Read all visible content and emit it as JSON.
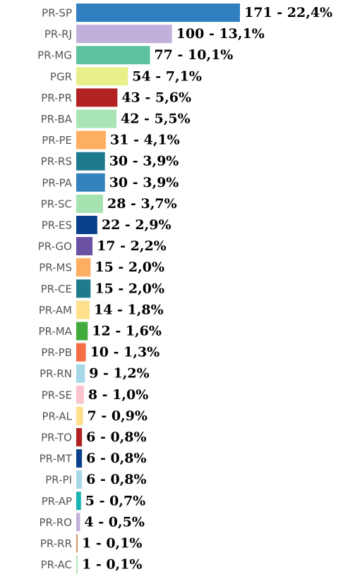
{
  "chart_data": {
    "type": "bar",
    "categories": [
      "PR-SP",
      "PR-RJ",
      "PR-MG",
      "PGR",
      "PR-PR",
      "PR-BA",
      "PR-PE",
      "PR-RS",
      "PR-PA",
      "PR-SC",
      "PR-ES",
      "PR-GO",
      "PR-MS",
      "PR-CE",
      "PR-AM",
      "PR-MA",
      "PR-PB",
      "PR-RN",
      "PR-SE",
      "PR-AL",
      "PR-TO",
      "PR-MT",
      "PR-PI",
      "PR-AP",
      "PR-RO",
      "PR-RR",
      "PR-AC"
    ],
    "values": [
      171,
      100,
      77,
      54,
      43,
      42,
      31,
      30,
      30,
      28,
      22,
      17,
      15,
      15,
      14,
      12,
      10,
      9,
      8,
      7,
      6,
      6,
      6,
      5,
      4,
      1,
      1
    ],
    "value_labels": [
      "171 - 22,4%",
      "100 - 13,1%",
      "77 - 10,1%",
      "54 - 7,1%",
      "43 - 5,6%",
      "42 - 5,5%",
      "31 - 4,1%",
      "30 - 3,9%",
      "30 - 3,9%",
      "28 - 3,7%",
      "22 - 2,9%",
      "17 - 2,2%",
      "15 - 2,0%",
      "15 - 2,0%",
      "14 - 1,8%",
      "12 - 1,6%",
      "10 - 1,3%",
      "9 - 1,2%",
      "8 - 1,0%",
      "7 - 0,9%",
      "6 - 0,8%",
      "6 - 0,8%",
      "6 - 0,8%",
      "5 - 0,7%",
      "4 - 0,5%",
      "1 - 0,1%",
      "1 - 0,1%"
    ],
    "colors": [
      "#2f7fc1",
      "#c2b0dc",
      "#5fc29e",
      "#e8f08a",
      "#b22222",
      "#a8e4b4",
      "#fdae61",
      "#1c7a8c",
      "#3182bd",
      "#a6e3b0",
      "#08408c",
      "#6a51a3",
      "#fdae61",
      "#1f7a8c",
      "#fee08b",
      "#41ab3d",
      "#f46d43",
      "#a6d8e8",
      "#fbc4d0",
      "#fee08b",
      "#b22222",
      "#08408c",
      "#a6d8e8",
      "#17b3b3",
      "#c2b0dc",
      "#d9956a",
      "#b8e6b8"
    ]
  }
}
